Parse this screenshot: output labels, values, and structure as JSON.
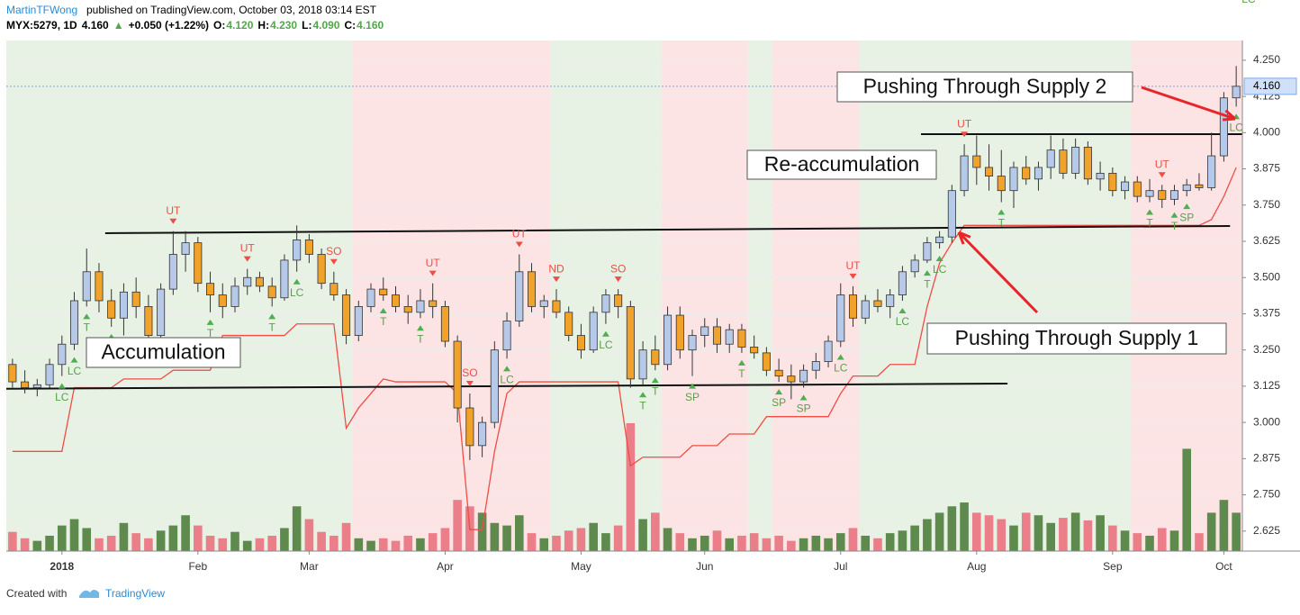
{
  "header": {
    "author": "MartinTFWong",
    "published": "published on TradingView.com, October 03, 2018 03:14 EST",
    "quote": [
      {
        "text": "MYX:5279, 1D",
        "color": "#000000"
      },
      {
        "text": "4.160",
        "color": "#000000"
      },
      {
        "text": "▲",
        "color": "#53a64a"
      },
      {
        "text": "+0.050 (+1.22%)",
        "color": "#000000"
      },
      {
        "text": "O:",
        "color": "#000000"
      },
      {
        "text": "4.120",
        "color": "#53a64a"
      },
      {
        "text": "H:",
        "color": "#000000"
      },
      {
        "text": "4.230",
        "color": "#53a64a"
      },
      {
        "text": "L:",
        "color": "#000000"
      },
      {
        "text": "4.090",
        "color": "#53a64a"
      },
      {
        "text": "C:",
        "color": "#000000"
      },
      {
        "text": "4.160",
        "color": "#53a64a"
      }
    ]
  },
  "footer": {
    "created": "Created with",
    "brand": "TradingView"
  },
  "chart_data": {
    "type": "candlestick",
    "categories": [
      null,
      null,
      null,
      null,
      "2018",
      null,
      null,
      null,
      null,
      null,
      null,
      null,
      null,
      null,
      null,
      "Feb",
      null,
      null,
      null,
      null,
      null,
      null,
      null,
      null,
      "Mar",
      null,
      null,
      null,
      null,
      null,
      null,
      null,
      null,
      null,
      null,
      "Apr",
      null,
      null,
      null,
      null,
      null,
      null,
      null,
      null,
      null,
      null,
      "May",
      null,
      null,
      null,
      null,
      null,
      null,
      null,
      null,
      null,
      "Jun",
      null,
      null,
      null,
      null,
      null,
      null,
      null,
      null,
      null,
      null,
      "Jul",
      null,
      null,
      null,
      null,
      null,
      null,
      null,
      null,
      null,
      null,
      "Aug",
      null,
      null,
      null,
      null,
      null,
      null,
      null,
      null,
      null,
      null,
      "Sep",
      null,
      null,
      null,
      null,
      null,
      null,
      null,
      null,
      "Oct",
      null
    ],
    "open": [
      3.2,
      3.14,
      3.12,
      3.13,
      3.2,
      3.27,
      3.42,
      3.52,
      3.42,
      3.36,
      3.45,
      3.4,
      3.3,
      3.46,
      3.58,
      3.62,
      3.48,
      3.44,
      3.4,
      3.47,
      3.5,
      3.47,
      3.43,
      3.56,
      3.63,
      3.58,
      3.48,
      3.44,
      3.3,
      3.4,
      3.46,
      3.44,
      3.4,
      3.38,
      3.42,
      3.4,
      3.28,
      3.05,
      2.92,
      3.0,
      3.25,
      3.35,
      3.52,
      3.4,
      3.42,
      3.38,
      3.3,
      3.25,
      3.38,
      3.44,
      3.4,
      3.15,
      3.25,
      3.2,
      3.37,
      3.25,
      3.3,
      3.33,
      3.27,
      3.32,
      3.26,
      3.24,
      3.18,
      3.16,
      3.14,
      3.18,
      3.21,
      3.28,
      3.44,
      3.36,
      3.42,
      3.4,
      3.44,
      3.52,
      3.56,
      3.62,
      3.64,
      3.8,
      3.92,
      3.88,
      3.85,
      3.8,
      3.88,
      3.84,
      3.88,
      3.94,
      3.86,
      3.95,
      3.84,
      3.86,
      3.8,
      3.83,
      3.78,
      3.8,
      3.77,
      3.8,
      3.82,
      3.81,
      3.92,
      4.12
    ],
    "high": [
      3.22,
      3.18,
      3.15,
      3.22,
      3.3,
      3.45,
      3.6,
      3.55,
      3.46,
      3.48,
      3.5,
      3.44,
      3.48,
      3.66,
      3.66,
      3.64,
      3.52,
      3.48,
      3.5,
      3.53,
      3.52,
      3.5,
      3.58,
      3.68,
      3.65,
      3.6,
      3.52,
      3.46,
      3.42,
      3.48,
      3.5,
      3.47,
      3.44,
      3.46,
      3.48,
      3.42,
      3.3,
      3.1,
      3.02,
      3.28,
      3.38,
      3.58,
      3.55,
      3.44,
      3.46,
      3.4,
      3.34,
      3.4,
      3.46,
      3.46,
      3.42,
      3.28,
      3.3,
      3.4,
      3.4,
      3.32,
      3.36,
      3.36,
      3.34,
      3.34,
      3.3,
      3.26,
      3.22,
      3.2,
      3.2,
      3.24,
      3.3,
      3.48,
      3.47,
      3.44,
      3.46,
      3.46,
      3.54,
      3.58,
      3.64,
      3.66,
      3.82,
      3.96,
      3.99,
      3.96,
      3.94,
      3.9,
      3.92,
      3.9,
      3.99,
      3.98,
      3.98,
      3.97,
      3.9,
      3.88,
      3.85,
      3.85,
      3.84,
      3.82,
      3.82,
      3.84,
      3.86,
      4.0,
      4.14,
      4.23
    ],
    "low": [
      3.12,
      3.1,
      3.09,
      3.12,
      3.16,
      3.25,
      3.4,
      3.38,
      3.33,
      3.3,
      3.36,
      3.28,
      3.28,
      3.44,
      3.52,
      3.45,
      3.38,
      3.36,
      3.38,
      3.44,
      3.45,
      3.4,
      3.42,
      3.52,
      3.55,
      3.46,
      3.42,
      3.27,
      3.28,
      3.38,
      3.42,
      3.38,
      3.34,
      3.36,
      3.36,
      3.26,
      3.0,
      2.87,
      2.88,
      2.98,
      3.22,
      3.33,
      3.38,
      3.36,
      3.36,
      3.28,
      3.22,
      3.24,
      3.34,
      3.36,
      3.12,
      3.13,
      3.18,
      3.18,
      3.22,
      3.16,
      3.26,
      3.24,
      3.24,
      3.24,
      3.22,
      3.16,
      3.14,
      3.08,
      3.12,
      3.15,
      3.19,
      3.26,
      3.33,
      3.34,
      3.38,
      3.36,
      3.42,
      3.5,
      3.55,
      3.6,
      3.62,
      3.78,
      3.82,
      3.8,
      3.76,
      3.74,
      3.82,
      3.8,
      3.84,
      3.84,
      3.84,
      3.82,
      3.8,
      3.78,
      3.77,
      3.76,
      3.76,
      3.74,
      3.75,
      3.78,
      3.8,
      3.8,
      3.9,
      4.09
    ],
    "close": [
      3.14,
      3.12,
      3.13,
      3.2,
      3.27,
      3.42,
      3.52,
      3.42,
      3.36,
      3.45,
      3.4,
      3.3,
      3.46,
      3.58,
      3.62,
      3.48,
      3.44,
      3.4,
      3.47,
      3.5,
      3.47,
      3.43,
      3.56,
      3.63,
      3.58,
      3.48,
      3.44,
      3.3,
      3.4,
      3.46,
      3.44,
      3.4,
      3.38,
      3.42,
      3.4,
      3.28,
      3.05,
      2.92,
      3.0,
      3.25,
      3.35,
      3.52,
      3.4,
      3.42,
      3.38,
      3.3,
      3.25,
      3.38,
      3.44,
      3.4,
      3.15,
      3.25,
      3.2,
      3.37,
      3.25,
      3.3,
      3.33,
      3.27,
      3.32,
      3.26,
      3.24,
      3.18,
      3.16,
      3.14,
      3.18,
      3.21,
      3.28,
      3.44,
      3.36,
      3.42,
      3.4,
      3.44,
      3.52,
      3.56,
      3.62,
      3.64,
      3.8,
      3.92,
      3.88,
      3.85,
      3.8,
      3.88,
      3.84,
      3.88,
      3.94,
      3.86,
      3.95,
      3.84,
      3.86,
      3.8,
      3.83,
      3.78,
      3.8,
      3.77,
      3.8,
      3.82,
      3.81,
      3.92,
      4.12,
      4.16
    ],
    "stop": [
      2.9,
      2.9,
      2.9,
      2.9,
      2.9,
      3.12,
      3.12,
      3.12,
      3.12,
      3.15,
      3.15,
      3.15,
      3.15,
      3.18,
      3.18,
      3.18,
      3.18,
      3.3,
      3.3,
      3.3,
      3.3,
      3.3,
      3.3,
      3.34,
      3.34,
      3.34,
      3.34,
      2.98,
      3.05,
      3.1,
      3.15,
      3.14,
      3.14,
      3.14,
      3.14,
      3.14,
      3.1,
      2.63,
      2.63,
      2.9,
      3.1,
      3.14,
      3.14,
      3.14,
      3.14,
      3.14,
      3.14,
      3.14,
      3.14,
      3.14,
      2.85,
      2.88,
      2.88,
      2.88,
      2.88,
      2.92,
      2.92,
      2.92,
      2.96,
      2.96,
      2.96,
      3.02,
      3.02,
      3.02,
      3.02,
      3.02,
      3.02,
      3.1,
      3.16,
      3.16,
      3.16,
      3.2,
      3.2,
      3.2,
      3.4,
      3.55,
      3.62,
      3.68,
      3.68,
      3.68,
      3.68,
      3.68,
      3.68,
      3.68,
      3.68,
      3.68,
      3.68,
      3.68,
      3.68,
      3.68,
      3.68,
      3.68,
      3.68,
      3.68,
      3.68,
      3.68,
      3.68,
      3.7,
      3.78,
      3.88
    ],
    "volume": [
      15,
      10,
      8,
      12,
      20,
      25,
      18,
      10,
      12,
      22,
      14,
      10,
      16,
      20,
      28,
      20,
      12,
      10,
      15,
      8,
      10,
      12,
      18,
      35,
      25,
      15,
      12,
      22,
      10,
      8,
      10,
      8,
      12,
      10,
      14,
      18,
      40,
      35,
      30,
      22,
      20,
      28,
      14,
      10,
      12,
      16,
      18,
      22,
      14,
      20,
      100,
      25,
      30,
      18,
      14,
      10,
      12,
      16,
      10,
      12,
      14,
      10,
      12,
      8,
      10,
      12,
      10,
      14,
      18,
      12,
      10,
      14,
      16,
      20,
      25,
      30,
      35,
      38,
      30,
      28,
      25,
      20,
      30,
      28,
      22,
      26,
      30,
      24,
      28,
      20,
      16,
      14,
      12,
      18,
      16,
      80,
      14,
      30,
      40,
      30
    ],
    "vlim": [
      0,
      100
    ],
    "signals": [
      null,
      null,
      null,
      null,
      {
        "label": "LC",
        "side": "below"
      },
      {
        "label": "LC",
        "side": "below"
      },
      {
        "label": "T",
        "side": "below"
      },
      null,
      {
        "label": "T",
        "side": "below"
      },
      {
        "label": "SP",
        "side": "below"
      },
      null,
      null,
      {
        "label": "LC",
        "side": "below"
      },
      {
        "label": "UT",
        "side": "above"
      },
      null,
      null,
      {
        "label": "T",
        "side": "below"
      },
      null,
      null,
      {
        "label": "UT",
        "side": "above"
      },
      null,
      {
        "label": "T",
        "side": "below"
      },
      null,
      {
        "label": "LC",
        "side": "below"
      },
      null,
      null,
      {
        "label": "SO",
        "side": "above"
      },
      null,
      null,
      null,
      {
        "label": "T",
        "side": "below"
      },
      null,
      null,
      {
        "label": "T",
        "side": "below"
      },
      {
        "label": "UT",
        "side": "above"
      },
      null,
      null,
      {
        "label": "SO",
        "side": "above"
      },
      null,
      null,
      {
        "label": "LC",
        "side": "below"
      },
      {
        "label": "UT",
        "side": "above"
      },
      null,
      null,
      {
        "label": "ND",
        "side": "above"
      },
      null,
      null,
      null,
      {
        "label": "LC",
        "side": "below"
      },
      {
        "label": "SO",
        "side": "above"
      },
      null,
      {
        "label": "T",
        "side": "below"
      },
      {
        "label": "T",
        "side": "below"
      },
      null,
      null,
      {
        "label": "SP",
        "side": "below"
      },
      null,
      null,
      null,
      {
        "label": "T",
        "side": "below"
      },
      null,
      null,
      {
        "label": "SP",
        "side": "below"
      },
      null,
      {
        "label": "SP",
        "side": "below"
      },
      null,
      null,
      {
        "label": "LC",
        "side": "below"
      },
      {
        "label": "UT",
        "side": "above"
      },
      null,
      null,
      null,
      {
        "label": "LC",
        "side": "below"
      },
      null,
      {
        "label": "T",
        "side": "below"
      },
      {
        "label": "LC",
        "side": "below"
      },
      null,
      {
        "label": "UT",
        "side": "above"
      },
      null,
      null,
      {
        "label": "T",
        "side": "below"
      },
      null,
      null,
      null,
      null,
      null,
      null,
      null,
      null,
      null,
      null,
      null,
      {
        "label": "T",
        "side": "below"
      },
      {
        "label": "UT",
        "side": "above"
      },
      {
        "label": "T",
        "side": "below"
      },
      {
        "label": "SP",
        "side": "below"
      },
      null,
      null,
      null,
      {
        "label": "LC",
        "side": "below"
      },
      {
        "label": "LC",
        "side": "below"
      }
    ],
    "regions": [
      {
        "start": 0,
        "end": 28,
        "color": "#e7f2e4"
      },
      {
        "start": 28,
        "end": 44,
        "color": "#fde4e4"
      },
      {
        "start": 44,
        "end": 53,
        "color": "#e7f2e4"
      },
      {
        "start": 53,
        "end": 60,
        "color": "#fde4e4"
      },
      {
        "start": 60,
        "end": 62,
        "color": "#e7f2e4"
      },
      {
        "start": 62,
        "end": 69,
        "color": "#fde4e4"
      },
      {
        "start": 69,
        "end": 91,
        "color": "#e7f2e4"
      },
      {
        "start": 91,
        "end": 100,
        "color": "#fde4e4"
      }
    ],
    "trendlines": [
      {
        "from": [
          8,
          3.653
        ],
        "to": [
          99,
          3.678
        ]
      },
      {
        "from": [
          0,
          3.116
        ],
        "to": [
          81,
          3.134
        ]
      },
      {
        "from": [
          74,
          3.995
        ],
        "to": [
          100,
          3.995
        ]
      }
    ],
    "annotations": [
      "Accumulation",
      "Re-accumulation",
      "Pushing Through Supply 1",
      "Pushing Through Supply 2"
    ],
    "last_price": {
      "value": 4.16,
      "label": "4.160"
    },
    "colors": {
      "up": "#b7c9e8",
      "down": "#f0a22a",
      "outline": "#333333",
      "vol_up": "#5e8a4e",
      "vol_down": "#ea7f89",
      "stop": "#ef4d45",
      "above": "#ef4d45",
      "below": "#4caf50",
      "signal_text": "#5a9e4a"
    },
    "ylim": [
      2.556,
      4.318
    ],
    "yticks": [
      {
        "value": 4.25,
        "label": "4.250"
      },
      {
        "value": 4.125,
        "label": "4.125"
      },
      {
        "value": 4.0,
        "label": "4.000"
      },
      {
        "value": 3.875,
        "label": "3.875"
      },
      {
        "value": 3.75,
        "label": "3.750"
      },
      {
        "value": 3.625,
        "label": "3.625"
      },
      {
        "value": 3.5,
        "label": "3.500"
      },
      {
        "value": 3.375,
        "label": "3.375"
      },
      {
        "value": 3.25,
        "label": "3.250"
      },
      {
        "value": 3.125,
        "label": "3.125"
      },
      {
        "value": 3.0,
        "label": "3.000"
      },
      {
        "value": 2.875,
        "label": "2.875"
      },
      {
        "value": 2.75,
        "label": "2.750"
      },
      {
        "value": 2.625,
        "label": "2.625"
      }
    ]
  }
}
